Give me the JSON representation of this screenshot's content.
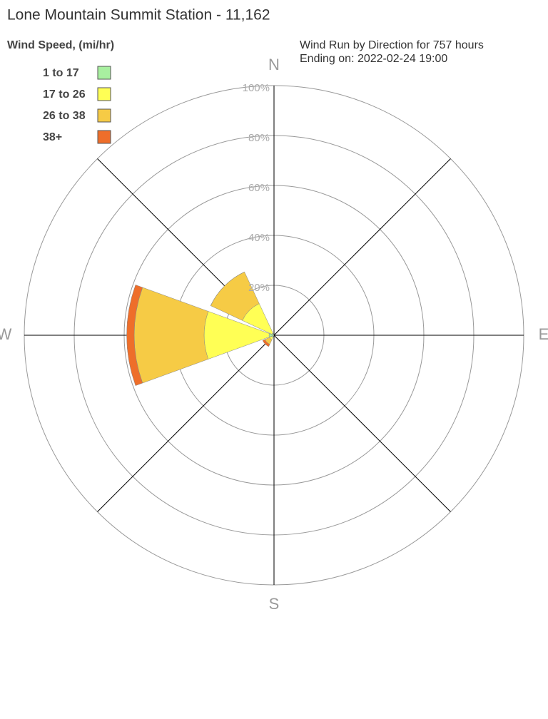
{
  "chart_data": {
    "type": "windrose",
    "title": "Lone Mountain Summit Station - 11,162",
    "legend_title": "Wind Speed, (mi/hr)",
    "subtitle": [
      "Wind Run by Direction for 757 hours",
      "Ending on: 2022-02-24 19:00"
    ],
    "categories": [
      "N",
      null,
      "E",
      null,
      "S",
      null,
      "W",
      null
    ],
    "series": [
      {
        "name": "1 to 17",
        "color": "#a8f0a0",
        "values": [
          0,
          0,
          0,
          0,
          0,
          1,
          2,
          1
        ]
      },
      {
        "name": "17 to 26",
        "color": "#ffff55",
        "values": [
          0,
          0,
          0,
          0,
          0,
          1,
          26,
          13
        ]
      },
      {
        "name": "26 to 38",
        "color": "#f6cb45",
        "values": [
          0,
          0,
          0,
          0,
          0,
          2,
          28,
          14
        ]
      },
      {
        "name": "38+",
        "color": "#ee6e2a",
        "values": [
          0,
          0,
          0,
          0,
          0,
          1,
          3,
          0
        ]
      }
    ],
    "rlim": [
      0,
      100
    ],
    "rticks": [
      {
        "value": 20,
        "label": "20%"
      },
      {
        "value": 40,
        "label": "40%"
      },
      {
        "value": 60,
        "label": "60%"
      },
      {
        "value": 80,
        "label": "80%"
      },
      {
        "value": 100,
        "label": "100%"
      }
    ]
  }
}
